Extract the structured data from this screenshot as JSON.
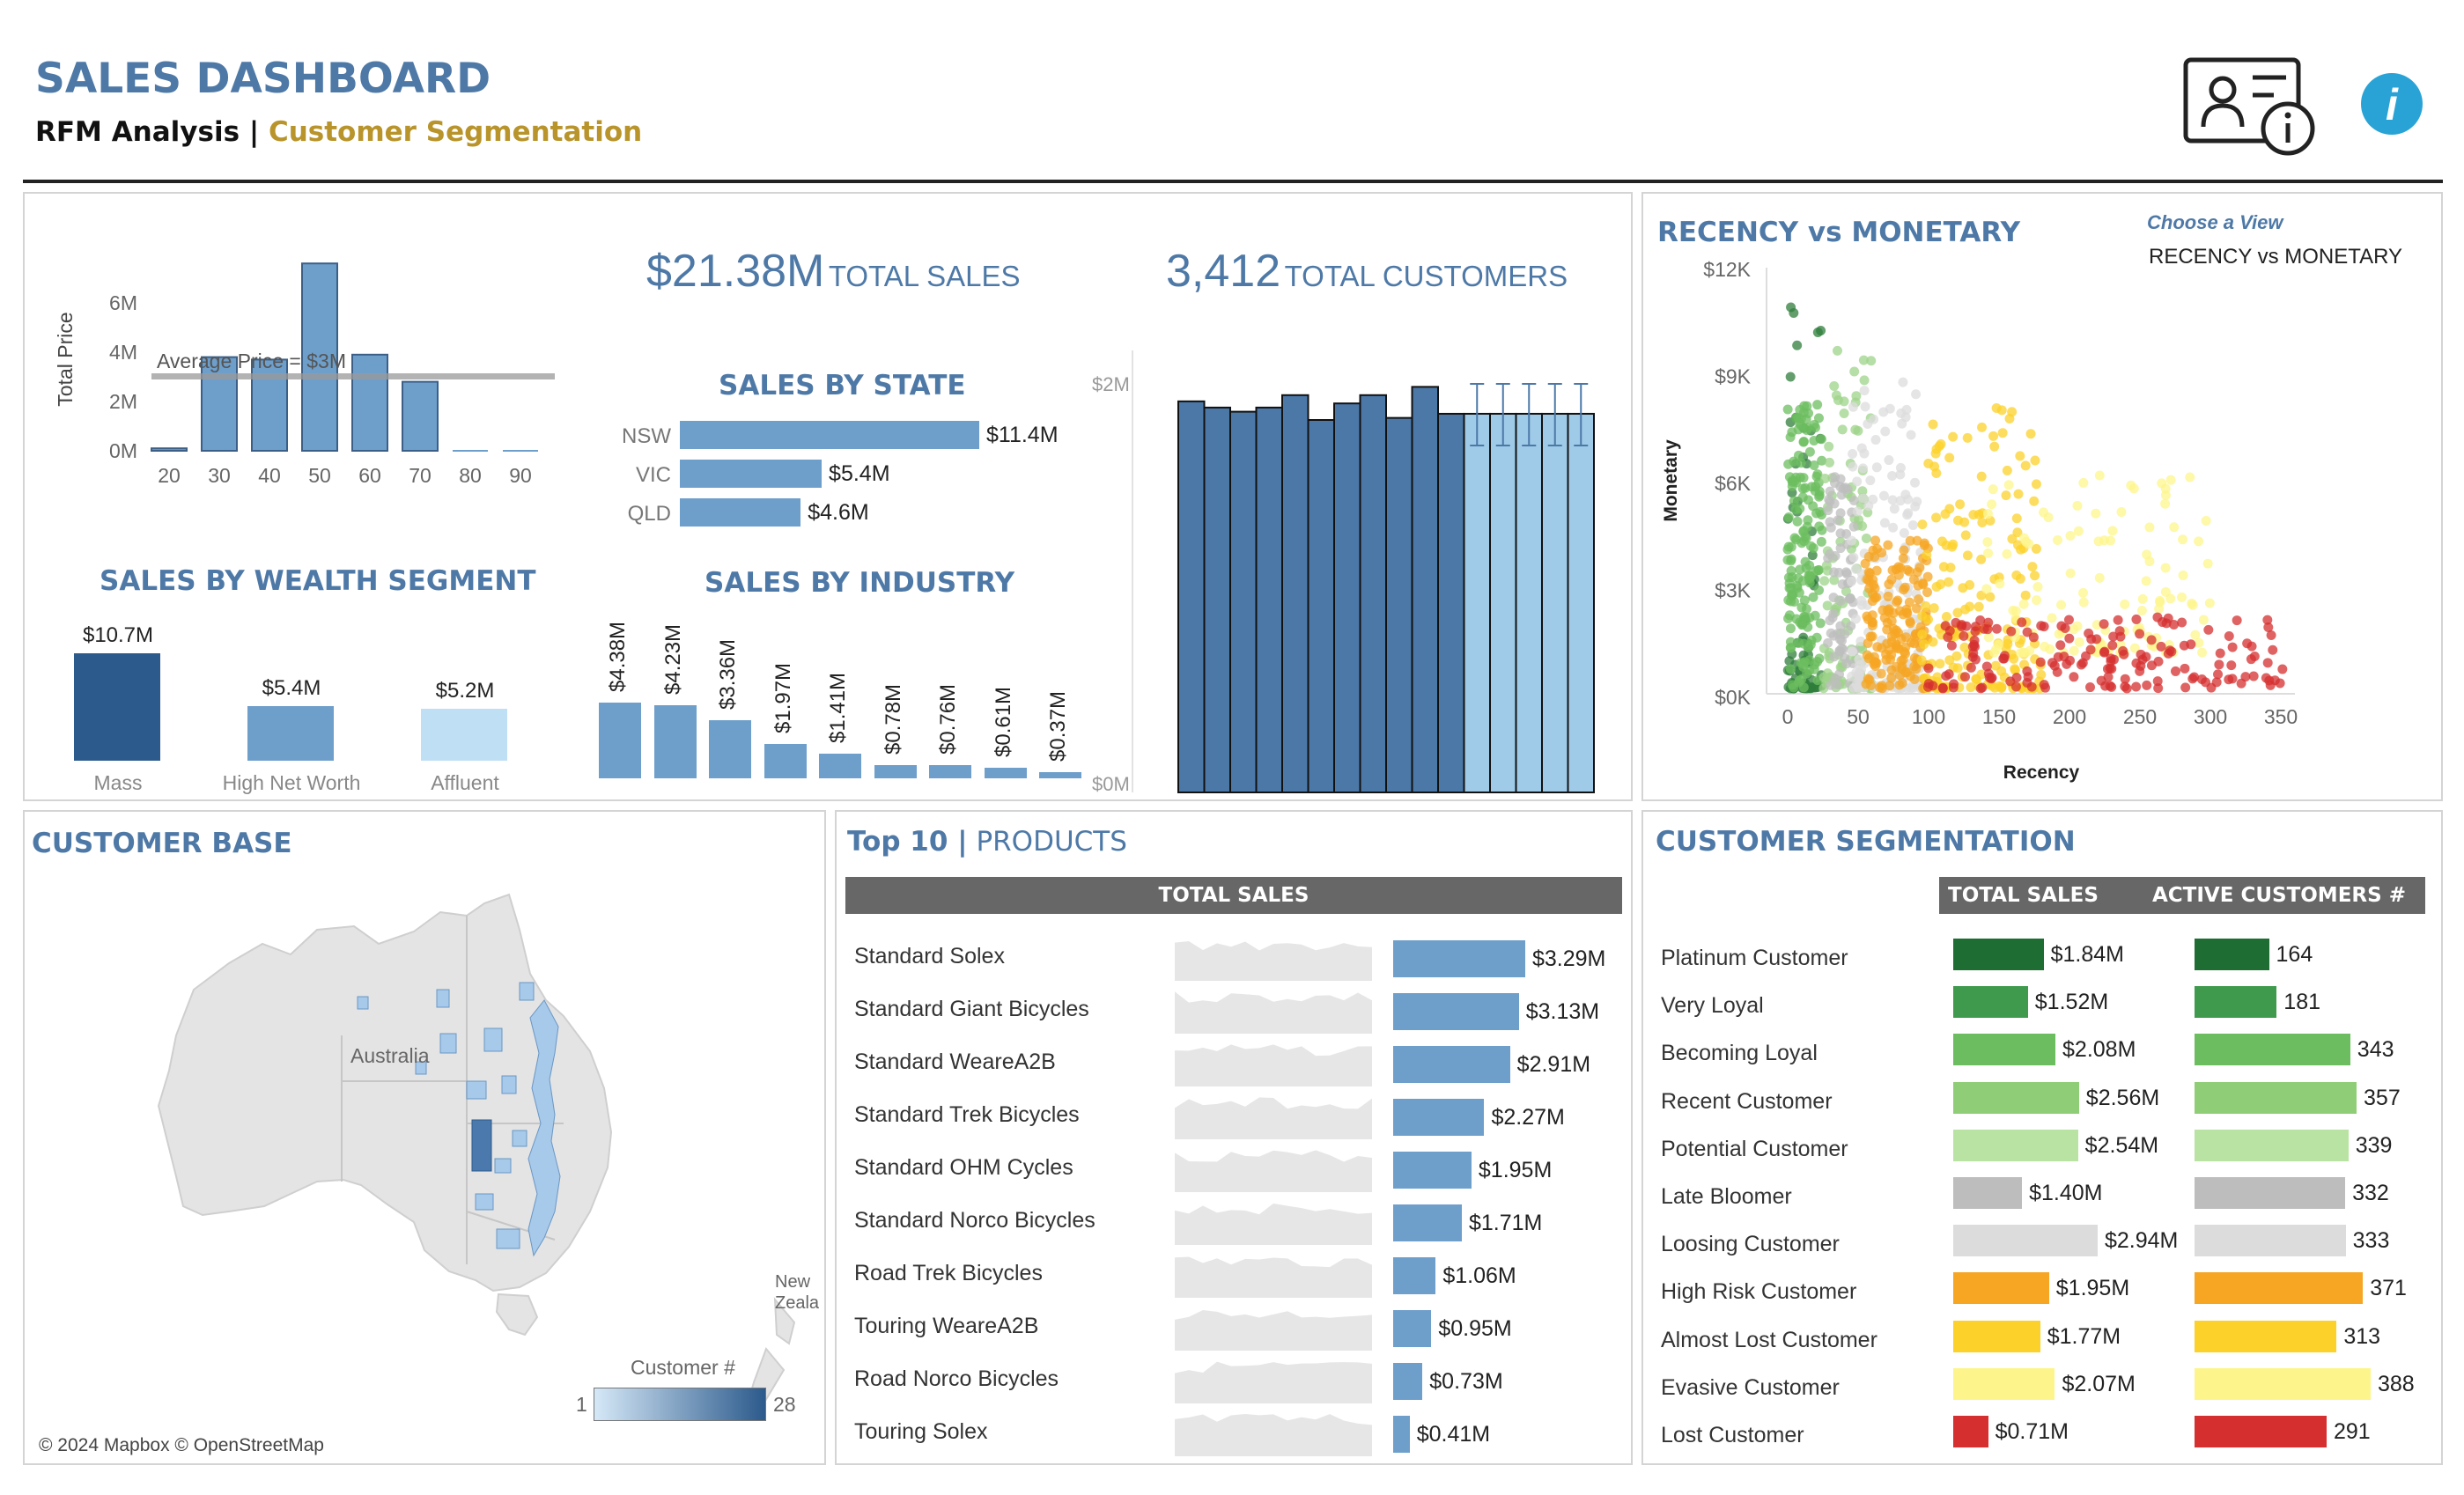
{
  "header": {
    "title": "SALES DASHBOARD",
    "subtitle_a": "RFM Analysis |",
    "subtitle_b": "Customer Segmentation"
  },
  "kpi": {
    "sales_value": "$21.38M",
    "sales_label": "TOTAL SALES",
    "customers_value": "3,412",
    "customers_label": "TOTAL CUSTOMERS"
  },
  "age_chart": {
    "ylabel": "Total Price",
    "yticks": [
      "6M",
      "4M",
      "2M",
      "0M"
    ],
    "xticks": [
      "20",
      "30",
      "40",
      "50",
      "60",
      "70",
      "80",
      "90"
    ],
    "avg_label": "Average Price = $3M",
    "values": [
      0.1,
      3.8,
      3.7,
      7.6,
      3.9,
      2.8,
      0,
      0
    ]
  },
  "wealth": {
    "title": "SALES BY WEALTH SEGMENT",
    "items": [
      {
        "label": "Mass",
        "value": "$10.7M",
        "amount": 10.7,
        "color": "#2c5a8c"
      },
      {
        "label": "High Net Worth",
        "value": "$5.4M",
        "amount": 5.4,
        "color": "#6e9fcb"
      },
      {
        "label": "Affluent",
        "value": "$5.2M",
        "amount": 5.2,
        "color": "#bfdff5"
      }
    ]
  },
  "state": {
    "title": "SALES BY STATE",
    "items": [
      {
        "label": "NSW",
        "value": "$11.4M",
        "amount": 11.4
      },
      {
        "label": "VIC",
        "value": "$5.4M",
        "amount": 5.4
      },
      {
        "label": "QLD",
        "value": "$4.6M",
        "amount": 4.6
      }
    ]
  },
  "industry": {
    "title": "SALES BY INDUSTRY",
    "items": [
      {
        "value": "$4.38M",
        "amount": 4.38
      },
      {
        "value": "$4.23M",
        "amount": 4.23
      },
      {
        "value": "$3.36M",
        "amount": 3.36
      },
      {
        "value": "$1.97M",
        "amount": 1.97
      },
      {
        "value": "$1.41M",
        "amount": 1.41
      },
      {
        "value": "$0.78M",
        "amount": 0.78
      },
      {
        "value": "$0.76M",
        "amount": 0.76
      },
      {
        "value": "$0.61M",
        "amount": 0.61
      },
      {
        "value": "$0.37M",
        "amount": 0.37
      }
    ]
  },
  "monthly": {
    "yticks": [
      "$2M",
      "$0M"
    ],
    "values": [
      1.89,
      1.86,
      1.84,
      1.86,
      1.92,
      1.8,
      1.88,
      1.92,
      1.81,
      1.96,
      1.83,
      1.83,
      1.83,
      1.83,
      1.83,
      1.83
    ],
    "forecast_from": 11
  },
  "scatter": {
    "title": "RECENCY vs MONETARY",
    "choose_label": "Choose a View",
    "choose_value": "RECENCY vs MONETARY",
    "xlabel": "Recency",
    "ylabel": "Monetary",
    "xticks": [
      "0",
      "50",
      "100",
      "150",
      "200",
      "250",
      "300",
      "350"
    ],
    "yticks": [
      "$12K",
      "$9K",
      "$6K",
      "$3K",
      "$0K"
    ],
    "xlim": [
      0,
      350
    ],
    "ylim": [
      0,
      12000
    ]
  },
  "map": {
    "title": "CUSTOMER BASE",
    "country": "Australia",
    "nz": "New Zeala",
    "legend_title": "Customer #",
    "legend_min": "1",
    "legend_max": "28",
    "attribution": "© 2024 Mapbox © OpenStreetMap"
  },
  "products": {
    "title_a": "Top 10 |",
    "title_b": "PRODUCTS",
    "column": "TOTAL SALES",
    "items": [
      {
        "name": "Standard Solex",
        "value": "$3.29M",
        "amount": 3.29
      },
      {
        "name": "Standard Giant Bicycles",
        "value": "$3.13M",
        "amount": 3.13
      },
      {
        "name": "Standard WeareA2B",
        "value": "$2.91M",
        "amount": 2.91
      },
      {
        "name": "Standard Trek Bicycles",
        "value": "$2.27M",
        "amount": 2.27
      },
      {
        "name": "Standard OHM Cycles",
        "value": "$1.95M",
        "amount": 1.95
      },
      {
        "name": "Standard Norco Bicycles",
        "value": "$1.71M",
        "amount": 1.71
      },
      {
        "name": "Road Trek Bicycles",
        "value": "$1.06M",
        "amount": 1.06
      },
      {
        "name": "Touring WeareA2B",
        "value": "$0.95M",
        "amount": 0.95
      },
      {
        "name": "Road Norco Bicycles",
        "value": "$0.73M",
        "amount": 0.73
      },
      {
        "name": "Touring Solex",
        "value": "$0.41M",
        "amount": 0.41
      }
    ]
  },
  "segmentation": {
    "title": "CUSTOMER SEGMENTATION",
    "col_sales": "TOTAL SALES",
    "col_customers": "ACTIVE CUSTOMERS #",
    "items": [
      {
        "name": "Platinum Customer",
        "sales": "$1.84M",
        "sales_amt": 1.84,
        "customers": "164",
        "cust_amt": 164,
        "color": "#1e6e34"
      },
      {
        "name": "Very Loyal",
        "sales": "$1.52M",
        "sales_amt": 1.52,
        "customers": "181",
        "cust_amt": 181,
        "color": "#3f9a4e"
      },
      {
        "name": "Becoming Loyal",
        "sales": "$2.08M",
        "sales_amt": 2.08,
        "customers": "343",
        "cust_amt": 343,
        "color": "#6cbd5f"
      },
      {
        "name": "Recent Customer",
        "sales": "$2.56M",
        "sales_amt": 2.56,
        "customers": "357",
        "cust_amt": 357,
        "color": "#8fce76"
      },
      {
        "name": "Potential Customer",
        "sales": "$2.54M",
        "sales_amt": 2.54,
        "customers": "339",
        "cust_amt": 339,
        "color": "#b9e3a2"
      },
      {
        "name": "Late Bloomer",
        "sales": "$1.40M",
        "sales_amt": 1.4,
        "customers": "332",
        "cust_amt": 332,
        "color": "#bdbdbd"
      },
      {
        "name": "Loosing Customer",
        "sales": "$2.94M",
        "sales_amt": 2.94,
        "customers": "333",
        "cust_amt": 333,
        "color": "#dcdcdc"
      },
      {
        "name": "High Risk Customer",
        "sales": "$1.95M",
        "sales_amt": 1.95,
        "customers": "371",
        "cust_amt": 371,
        "color": "#f6a623"
      },
      {
        "name": "Almost Lost Customer",
        "sales": "$1.77M",
        "sales_amt": 1.77,
        "customers": "313",
        "cust_amt": 313,
        "color": "#fcd12a"
      },
      {
        "name": "Evasive Customer",
        "sales": "$2.07M",
        "sales_amt": 2.07,
        "customers": "388",
        "cust_amt": 388,
        "color": "#fdf58c"
      },
      {
        "name": "Lost Customer",
        "sales": "$0.71M",
        "sales_amt": 0.71,
        "customers": "291",
        "cust_amt": 291,
        "color": "#d62f2f"
      }
    ]
  },
  "icons": {
    "profile": "user-info-card-icon",
    "info": "info-icon"
  }
}
